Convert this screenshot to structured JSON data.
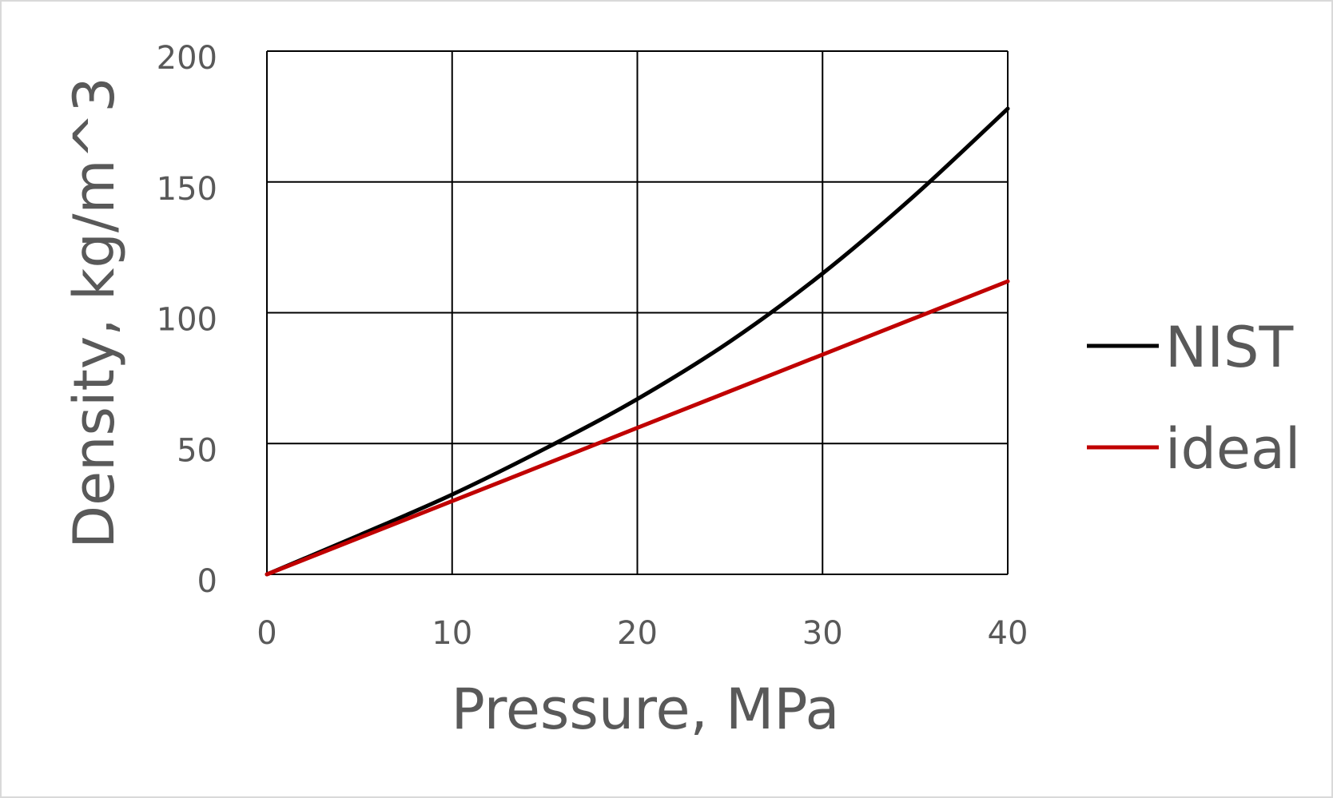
{
  "chart_data": {
    "type": "line",
    "title": "",
    "xlabel": "Pressure, MPa",
    "ylabel": "Density, kg/m^3",
    "xlim": [
      0,
      40
    ],
    "ylim": [
      0,
      200
    ],
    "x_ticks": [
      0,
      10,
      20,
      30,
      40
    ],
    "y_ticks": [
      0,
      50,
      100,
      150,
      200
    ],
    "x_tick_labels": [
      "0",
      "10",
      "20",
      "30",
      "40"
    ],
    "y_tick_labels": [
      "0",
      "50",
      "100",
      "150",
      "200"
    ],
    "grid": true,
    "legend_position": "right",
    "series": [
      {
        "name": "NIST",
        "color": "#000000",
        "x": [
          0,
          5,
          10,
          15,
          20,
          25,
          30,
          35,
          40
        ],
        "y": [
          0,
          15,
          30.5,
          48,
          67,
          89,
          115,
          145,
          178
        ]
      },
      {
        "name": "ideal",
        "color": "#c00000",
        "x": [
          0,
          5,
          10,
          15,
          20,
          25,
          30,
          35,
          40
        ],
        "y": [
          0,
          14,
          28,
          42,
          56,
          70,
          84,
          98,
          112
        ]
      }
    ]
  }
}
